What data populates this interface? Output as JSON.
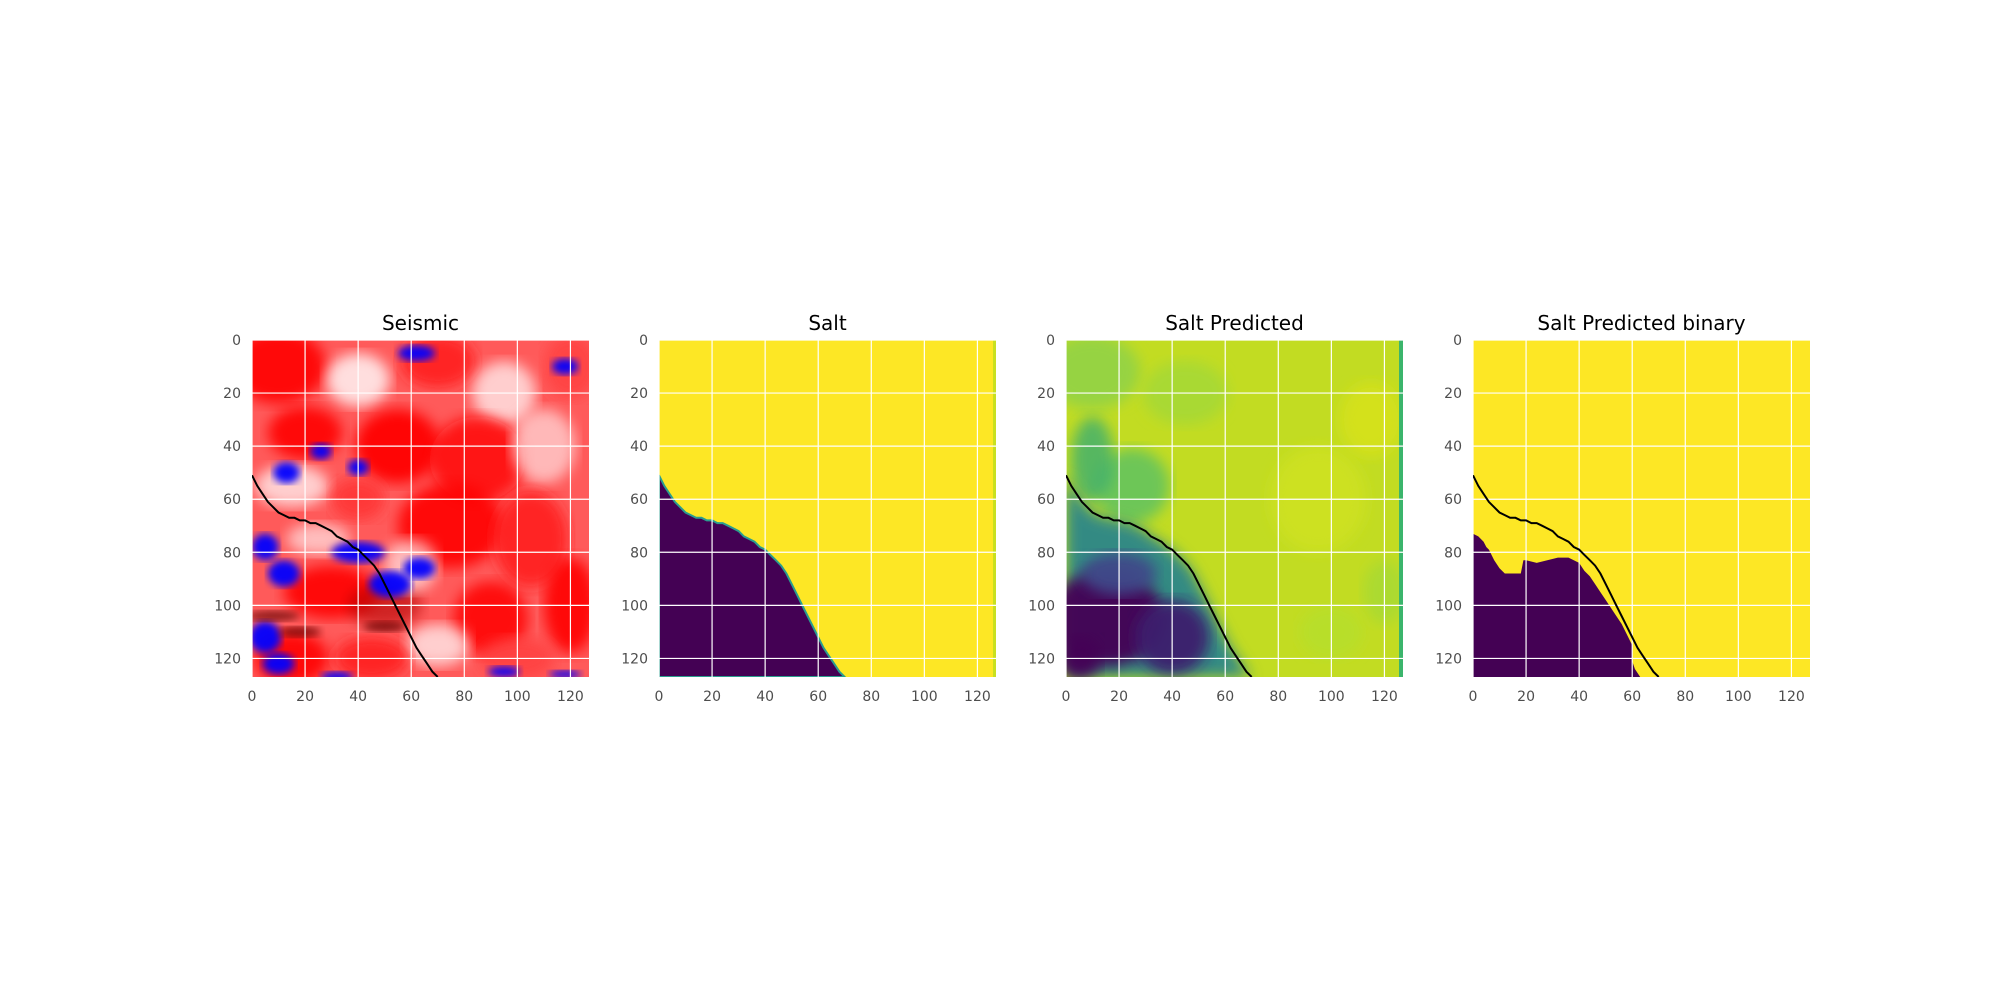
{
  "figure": {
    "type": "image-grid",
    "panels": [
      {
        "title": "Seismic",
        "image": "seismic",
        "colormap": "seismic"
      },
      {
        "title": "Salt",
        "image": "salt_mask",
        "colormap": "viridis"
      },
      {
        "title": "Salt Predicted",
        "image": "salt_probability",
        "colormap": "viridis"
      },
      {
        "title": "Salt Predicted binary",
        "image": "salt_binary",
        "colormap": "viridis"
      }
    ]
  },
  "chart_data": [
    {
      "type": "heatmap",
      "title": "Seismic",
      "xlim": [
        0,
        127
      ],
      "ylim": [
        127,
        0
      ],
      "xticks": [
        "0",
        "20",
        "40",
        "60",
        "80",
        "100",
        "120"
      ],
      "yticks": [
        "0",
        "20",
        "40",
        "60",
        "80",
        "100",
        "120"
      ],
      "grid": true,
      "colormap": "seismic",
      "overlay_contour": true
    },
    {
      "type": "heatmap",
      "title": "Salt",
      "xlim": [
        0,
        127
      ],
      "ylim": [
        127,
        0
      ],
      "xticks": [
        "0",
        "20",
        "40",
        "60",
        "80",
        "100",
        "120"
      ],
      "yticks": [
        "0",
        "20",
        "40",
        "60",
        "80",
        "100",
        "120"
      ],
      "grid": true,
      "colormap": "viridis",
      "overlay_contour": false
    },
    {
      "type": "heatmap",
      "title": "Salt Predicted",
      "xlim": [
        0,
        127
      ],
      "ylim": [
        127,
        0
      ],
      "xticks": [
        "0",
        "20",
        "40",
        "60",
        "80",
        "100",
        "120"
      ],
      "yticks": [
        "0",
        "20",
        "40",
        "60",
        "80",
        "100",
        "120"
      ],
      "grid": true,
      "colormap": "viridis",
      "overlay_contour": true
    },
    {
      "type": "heatmap",
      "title": "Salt Predicted binary",
      "xlim": [
        0,
        127
      ],
      "ylim": [
        127,
        0
      ],
      "xticks": [
        "0",
        "20",
        "40",
        "60",
        "80",
        "100",
        "120"
      ],
      "yticks": [
        "0",
        "20",
        "40",
        "60",
        "80",
        "100",
        "120"
      ],
      "grid": true,
      "colormap": "viridis",
      "overlay_contour": true
    }
  ],
  "salt_boundary": {
    "x": [
      0,
      2,
      4,
      6,
      8,
      10,
      12,
      14,
      16,
      18,
      20,
      22,
      24,
      26,
      28,
      30,
      32,
      34,
      36,
      38,
      40,
      42,
      44,
      46,
      48,
      50,
      52,
      54,
      56,
      58,
      60,
      62,
      64,
      66,
      68,
      70
    ],
    "y": [
      51,
      55,
      58,
      61,
      63,
      65,
      66,
      67,
      67,
      68,
      68,
      69,
      69,
      70,
      71,
      72,
      74,
      75,
      76,
      78,
      79,
      81,
      83,
      85,
      88,
      92,
      96,
      100,
      104,
      108,
      112,
      116,
      119,
      122,
      125,
      127
    ]
  },
  "predicted_binary_boundary": {
    "x": [
      0,
      2,
      4,
      5,
      6,
      8,
      10,
      12,
      18,
      19,
      20,
      24,
      28,
      32,
      36,
      38,
      40,
      42,
      44,
      46,
      48,
      50,
      52,
      54,
      56,
      58,
      60,
      60,
      61,
      63
    ],
    "y": [
      73,
      74,
      76,
      78,
      79,
      83,
      86,
      88,
      88,
      83,
      83,
      84,
      83,
      82,
      82,
      83,
      84,
      87,
      89,
      92,
      95,
      98,
      101,
      104,
      107,
      111,
      115,
      121,
      124,
      127
    ]
  },
  "colors": {
    "seismic_low": "#0000ff",
    "seismic_mid": "#ffffff",
    "seismic_high": "#ff0000",
    "viridis_low": "#440154",
    "viridis_high": "#fde725",
    "contour": "#000000",
    "grid": "#ffffff",
    "tick_text": "#4d4d4d",
    "title_text": "#000000"
  }
}
